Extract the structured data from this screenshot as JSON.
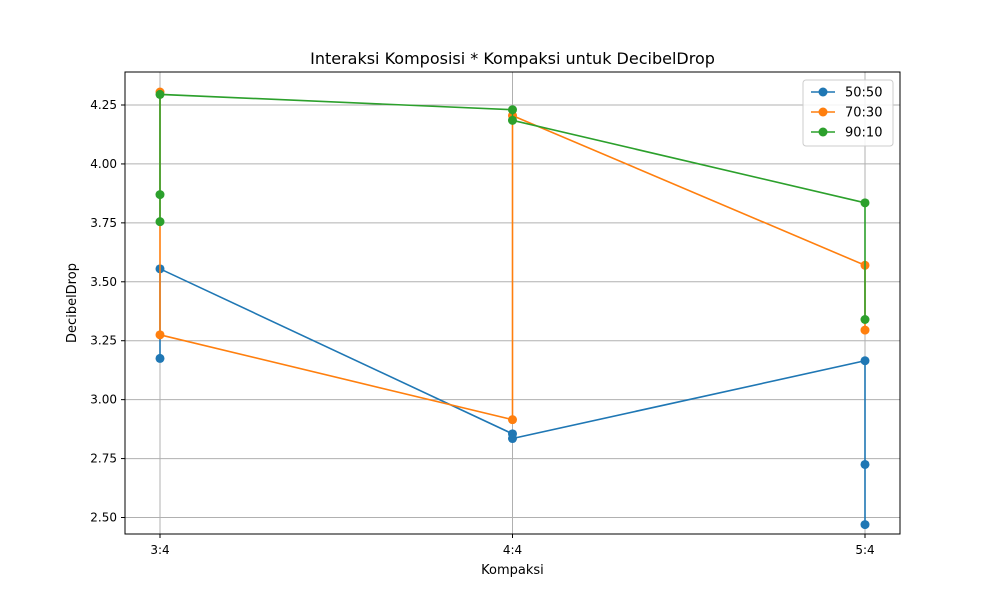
{
  "chart_data": {
    "type": "line",
    "title": "Interaksi Komposisi * Kompaksi untuk DecibelDrop",
    "xlabel": "Kompaksi",
    "ylabel": "DecibelDrop",
    "categories": [
      "3:4",
      "4:4",
      "5:4"
    ],
    "ylim": [
      2.43,
      4.39
    ],
    "yticks": [
      2.5,
      2.75,
      3.0,
      3.25,
      3.5,
      3.75,
      4.0,
      4.25
    ],
    "grid": true,
    "legend_position": "top-right",
    "series": [
      {
        "name": "50:50",
        "color": "#1f77b4",
        "points": [
          {
            "x": "3:4",
            "y": 3.175
          },
          {
            "x": "3:4",
            "y": 3.555
          },
          {
            "x": "4:4",
            "y": 2.855
          },
          {
            "x": "4:4",
            "y": 2.835
          },
          {
            "x": "5:4",
            "y": 3.165
          },
          {
            "x": "5:4",
            "y": 2.725
          },
          {
            "x": "5:4",
            "y": 2.47
          }
        ]
      },
      {
        "name": "70:30",
        "color": "#ff7f0e",
        "points": [
          {
            "x": "3:4",
            "y": 4.305
          },
          {
            "x": "3:4",
            "y": 3.275
          },
          {
            "x": "4:4",
            "y": 2.915
          },
          {
            "x": "4:4",
            "y": 4.205
          },
          {
            "x": "5:4",
            "y": 3.57
          },
          {
            "x": "5:4",
            "y": 3.295
          }
        ]
      },
      {
        "name": "90:10",
        "color": "#2ca02c",
        "points": [
          {
            "x": "3:4",
            "y": 3.755
          },
          {
            "x": "3:4",
            "y": 3.87
          },
          {
            "x": "3:4",
            "y": 4.295
          },
          {
            "x": "4:4",
            "y": 4.23
          },
          {
            "x": "4:4",
            "y": 4.185
          },
          {
            "x": "5:4",
            "y": 3.835
          },
          {
            "x": "5:4",
            "y": 3.34
          }
        ]
      }
    ]
  }
}
